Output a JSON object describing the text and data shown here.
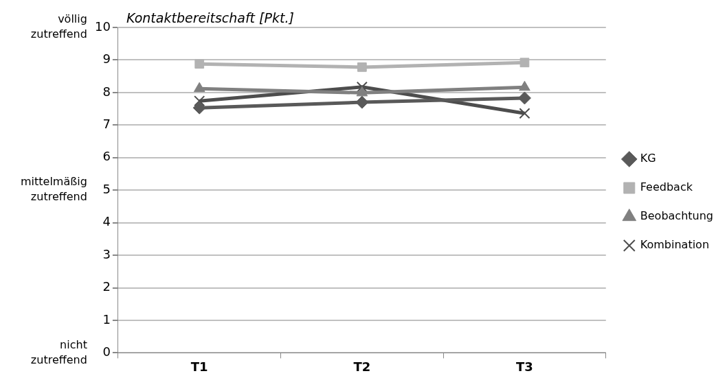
{
  "chart_data": {
    "type": "line",
    "ylabel": "Kontaktbereitschaft [Pkt.]",
    "categories": [
      "T1",
      "T2",
      "T3"
    ],
    "series": [
      {
        "name": "KG",
        "color": "#595959",
        "marker": "diamond",
        "values": [
          7.53,
          7.7,
          7.83
        ]
      },
      {
        "name": "Feedback",
        "color": "#b2b2b2",
        "marker": "square",
        "values": [
          8.88,
          8.78,
          8.92
        ]
      },
      {
        "name": "Beobachtung",
        "color": "#808080",
        "marker": "triangle",
        "values": [
          8.12,
          7.99,
          8.16
        ]
      },
      {
        "name": "Kombination",
        "color": "#4d4d4d",
        "marker": "cross",
        "values": [
          7.74,
          8.17,
          7.36
        ]
      }
    ],
    "ylim": [
      0,
      10
    ],
    "yticks": [
      0,
      1,
      2,
      3,
      4,
      5,
      6,
      7,
      8,
      9,
      10
    ],
    "grid": "y",
    "legend": "right",
    "annotations": [
      "völlig zutreffend",
      "mittelmäßig zutreffend",
      "nicht zutreffend"
    ]
  }
}
